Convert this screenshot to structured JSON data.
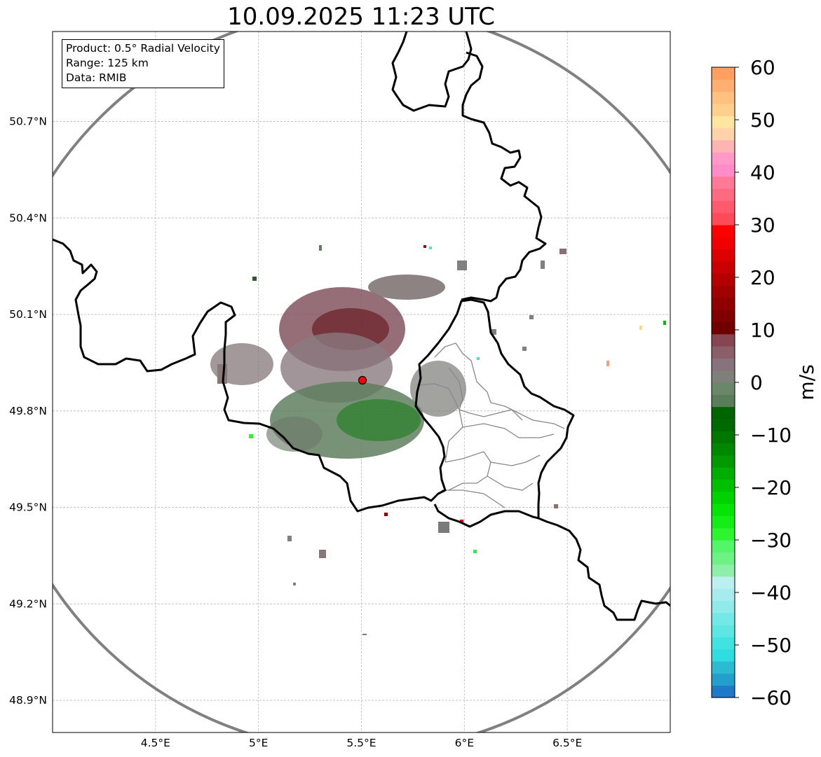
{
  "title": "10.09.2025 11:23 UTC",
  "info": {
    "product": "Product: 0.5° Radial Velocity",
    "range": "Range: 125 km",
    "source": "Data: RMIB"
  },
  "map": {
    "lon_range": [
      4.0,
      7.0
    ],
    "lat_range": [
      48.8,
      50.98
    ],
    "lon_ticks": [
      {
        "value": 4.5,
        "label": "4.5°E"
      },
      {
        "value": 5.0,
        "label": "5°E"
      },
      {
        "value": 5.5,
        "label": "5.5°E"
      },
      {
        "value": 6.0,
        "label": "6°E"
      },
      {
        "value": 6.5,
        "label": "6.5°E"
      }
    ],
    "lat_ticks": [
      {
        "value": 48.9,
        "label": "48.9°N"
      },
      {
        "value": 49.2,
        "label": "49.2°N"
      },
      {
        "value": 49.5,
        "label": "49.5°N"
      },
      {
        "value": 49.8,
        "label": "49.8°N"
      },
      {
        "value": 50.1,
        "label": "50.1°N"
      },
      {
        "value": 50.4,
        "label": "50.4°N"
      },
      {
        "value": 50.7,
        "label": "50.7°N"
      }
    ],
    "gridlines": true,
    "radar_site": {
      "lon": 5.505,
      "lat": 49.914
    },
    "range_km": 125
  },
  "colorbar": {
    "label": "m/s",
    "min": -60,
    "max": 60,
    "ticks": [
      {
        "value": 60,
        "label": "60"
      },
      {
        "value": 50,
        "label": "50"
      },
      {
        "value": 40,
        "label": "40"
      },
      {
        "value": 30,
        "label": "30"
      },
      {
        "value": 20,
        "label": "20"
      },
      {
        "value": 10,
        "label": "10"
      },
      {
        "value": 0,
        "label": "0"
      },
      {
        "value": -10,
        "label": "−10"
      },
      {
        "value": -20,
        "label": "−20"
      },
      {
        "value": -30,
        "label": "−30"
      },
      {
        "value": -40,
        "label": "−40"
      },
      {
        "value": -50,
        "label": "−50"
      },
      {
        "value": -60,
        "label": "−60"
      }
    ],
    "colors_bottom_to_top": [
      "#1f78c8",
      "#239fcc",
      "#2cbad0",
      "#2fdde0",
      "#40e3e0",
      "#5de6e2",
      "#74e8e6",
      "#8feaea",
      "#a6eced",
      "#bcf0f0",
      "#8ef0a8",
      "#6ef283",
      "#55f56a",
      "#2cf530",
      "#14ee16",
      "#06e306",
      "#00d200",
      "#00c000",
      "#00ad00",
      "#009a00",
      "#008800",
      "#007800",
      "#006a00",
      "#006400",
      "#5a7e5a",
      "#6a8869",
      "#7f807b",
      "#86737c",
      "#8a5f6a",
      "#844752",
      "#700000",
      "#800000",
      "#900000",
      "#a00000",
      "#b40000",
      "#c80000",
      "#dc0000",
      "#f00000",
      "#ff0000",
      "#ff4a5a",
      "#ff5a6e",
      "#ff6a80",
      "#ff7a96",
      "#ff8cc8",
      "#ff9ac8",
      "#ffb4b4",
      "#ffd2aa",
      "#ffe6a0",
      "#ffd08c",
      "#ffc080",
      "#ffb070",
      "#ffa060"
    ]
  }
}
